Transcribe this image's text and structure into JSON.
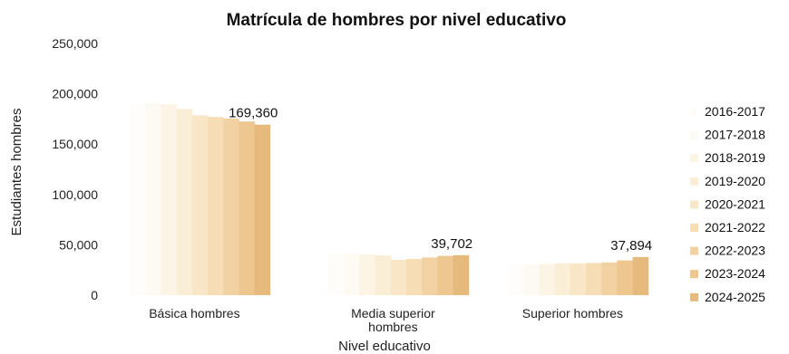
{
  "chart_data": {
    "type": "bar",
    "title": "Matrícula de hombres por nivel educativo",
    "xlabel": "Nivel educativo",
    "ylabel": "Estudiantes hombres",
    "ylim": [
      0,
      250000
    ],
    "yticks": [
      0,
      50000,
      100000,
      150000,
      200000,
      250000
    ],
    "ytick_labels": [
      "0",
      "50,000",
      "100,000",
      "150,000",
      "200,000",
      "250,000"
    ],
    "categories": [
      [
        "Básica hombres"
      ],
      [
        "Media superior",
        "hombres"
      ],
      [
        "Superior hombres"
      ]
    ],
    "series": [
      {
        "name": "2016-2017",
        "color": "#fefdfb",
        "values": [
          190000,
          40500,
          30000
        ]
      },
      {
        "name": "2017-2018",
        "color": "#fdfaf3",
        "values": [
          190500,
          41000,
          30500
        ]
      },
      {
        "name": "2018-2019",
        "color": "#fcf4e4",
        "values": [
          189500,
          40500,
          31000
        ]
      },
      {
        "name": "2019-2020",
        "color": "#fbeed7",
        "values": [
          185000,
          39500,
          31500
        ]
      },
      {
        "name": "2020-2021",
        "color": "#f9e6c7",
        "values": [
          178500,
          35000,
          31500
        ]
      },
      {
        "name": "2021-2022",
        "color": "#f6ddb6",
        "values": [
          177000,
          36000,
          32000
        ]
      },
      {
        "name": "2022-2023",
        "color": "#f2d2a3",
        "values": [
          175500,
          37500,
          32500
        ]
      },
      {
        "name": "2023-2024",
        "color": "#edc690",
        "values": [
          172500,
          39000,
          34500
        ]
      },
      {
        "name": "2024-2025",
        "color": "#e6b97d",
        "values": [
          169360,
          39702,
          37894
        ]
      }
    ],
    "data_labels": [
      "169,360",
      "39,702",
      "37,894"
    ],
    "legend_position": "right",
    "grid": false
  }
}
